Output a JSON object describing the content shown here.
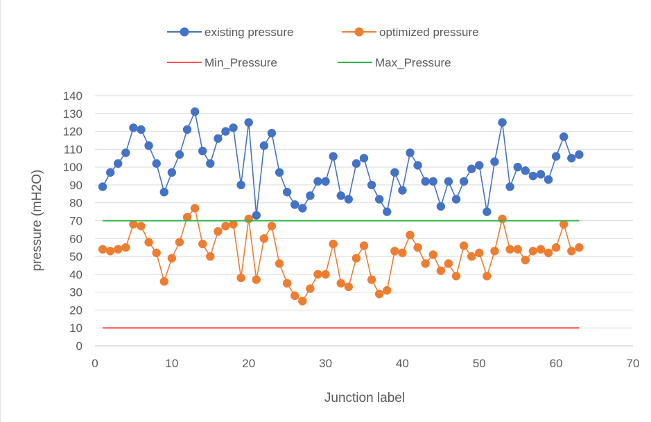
{
  "chart_data": {
    "type": "line",
    "title": "",
    "xlabel": "Junction label",
    "ylabel": "pressure (mH2O)",
    "xlim": [
      0,
      70
    ],
    "ylim": [
      0,
      140
    ],
    "x_ticks": [
      0,
      10,
      20,
      30,
      40,
      50,
      60,
      70
    ],
    "y_ticks": [
      0,
      10,
      20,
      30,
      40,
      50,
      60,
      70,
      80,
      90,
      100,
      110,
      120,
      130,
      140
    ],
    "grid": "horizontal",
    "legend_position": "top",
    "series": [
      {
        "name": "existing pressure",
        "color": "#4472c4",
        "marker": "circle",
        "x": [
          1,
          2,
          3,
          4,
          5,
          6,
          7,
          8,
          9,
          10,
          11,
          12,
          13,
          14,
          15,
          16,
          17,
          18,
          19,
          20,
          21,
          22,
          23,
          24,
          25,
          26,
          27,
          28,
          29,
          30,
          31,
          32,
          33,
          34,
          35,
          36,
          37,
          38,
          39,
          40,
          41,
          42,
          43,
          44,
          45,
          46,
          47,
          48,
          49,
          50,
          51,
          52,
          53,
          54,
          55,
          56,
          57,
          58,
          59,
          60,
          61,
          62,
          63
        ],
        "values": [
          89,
          97,
          102,
          108,
          122,
          121,
          112,
          102,
          86,
          97,
          107,
          121,
          131,
          109,
          102,
          116,
          120,
          122,
          90,
          125,
          73,
          112,
          119,
          97,
          86,
          79,
          77,
          84,
          92,
          92,
          106,
          84,
          82,
          102,
          105,
          90,
          82,
          75,
          97,
          87,
          108,
          101,
          92,
          92,
          78,
          92,
          82,
          92,
          99,
          101,
          75,
          103,
          125,
          89,
          100,
          98,
          95,
          96,
          93,
          106,
          117,
          105,
          107
        ]
      },
      {
        "name": "optimized pressure",
        "color": "#ed7d31",
        "marker": "circle",
        "x": [
          1,
          2,
          3,
          4,
          5,
          6,
          7,
          8,
          9,
          10,
          11,
          12,
          13,
          14,
          15,
          16,
          17,
          18,
          19,
          20,
          21,
          22,
          23,
          24,
          25,
          26,
          27,
          28,
          29,
          30,
          31,
          32,
          33,
          34,
          35,
          36,
          37,
          38,
          39,
          40,
          41,
          42,
          43,
          44,
          45,
          46,
          47,
          48,
          49,
          50,
          51,
          52,
          53,
          54,
          55,
          56,
          57,
          58,
          59,
          60,
          61,
          62,
          63
        ],
        "values": [
          54,
          53,
          54,
          55,
          68,
          67,
          58,
          52,
          36,
          49,
          58,
          72,
          77,
          57,
          50,
          64,
          67,
          68,
          38,
          71,
          37,
          60,
          67,
          46,
          35,
          28,
          25,
          32,
          40,
          40,
          57,
          35,
          33,
          49,
          56,
          37,
          29,
          31,
          53,
          52,
          62,
          55,
          46,
          51,
          42,
          46,
          39,
          56,
          50,
          52,
          39,
          53,
          71,
          54,
          54,
          48,
          53,
          54,
          52,
          55,
          68,
          53,
          55
        ]
      },
      {
        "name": "Min_Pressure",
        "color": "#ff4d4d",
        "marker": "none",
        "x": [
          1,
          63
        ],
        "values": [
          10,
          10
        ]
      },
      {
        "name": "Max_Pressure",
        "color": "#2db34a",
        "marker": "none",
        "x": [
          1,
          63
        ],
        "values": [
          70,
          70
        ]
      }
    ]
  }
}
